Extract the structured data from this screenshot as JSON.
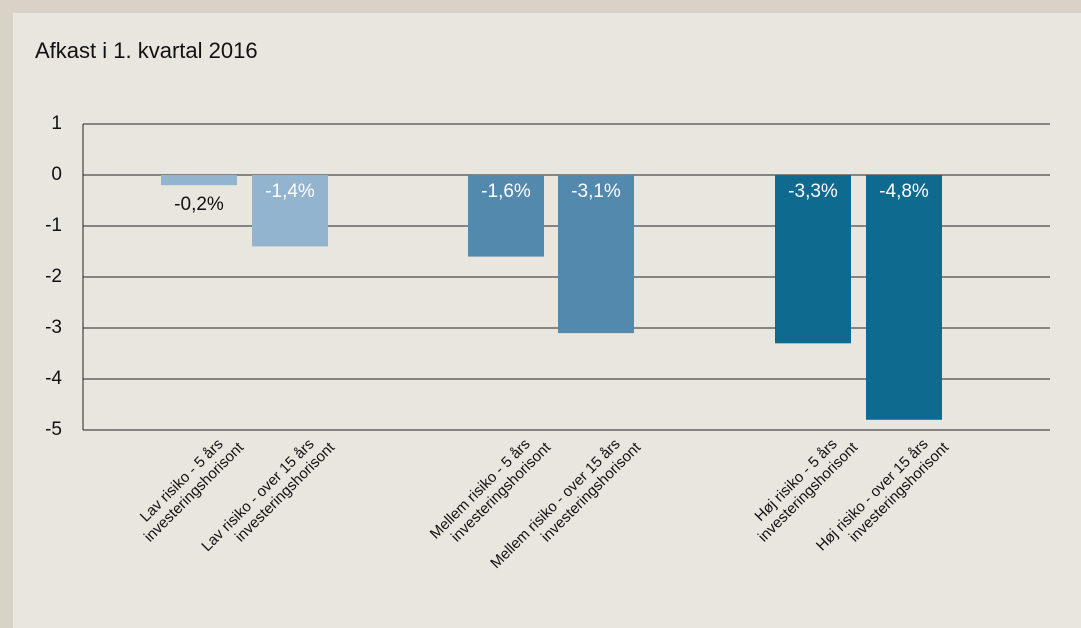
{
  "chart_data": {
    "type": "bar",
    "title": "Afkast i 1. kvartal 2016",
    "categories": [
      [
        "Lav risiko - 5 års",
        "investeringshorisont"
      ],
      [
        "Lav risiko - over 15 års",
        "investeringshorisont"
      ],
      [
        "Mellem risiko - 5 års",
        "investeringshorisont"
      ],
      [
        "Mellem risiko - over 15 års",
        "investeringshorisont"
      ],
      [
        "Høj risiko - 5 års",
        "investeringshorisont"
      ],
      [
        "Høj risiko - over 15 års",
        "investeringshorisont"
      ]
    ],
    "values": [
      -0.2,
      -1.4,
      -1.6,
      -3.1,
      -3.3,
      -4.8
    ],
    "value_labels": [
      "-0,2%",
      "-1,4%",
      "-1,6%",
      "-3,1%",
      "-3,3%",
      "-4,8%"
    ],
    "colors": [
      "#93b4cf",
      "#93b4cf",
      "#5289ad",
      "#5289ad",
      "#0f6a90",
      "#0f6a90"
    ],
    "ylim": [
      -5,
      1
    ],
    "yticks": [
      1,
      0,
      -1,
      -2,
      -3,
      -4,
      -5
    ],
    "grid": true
  }
}
